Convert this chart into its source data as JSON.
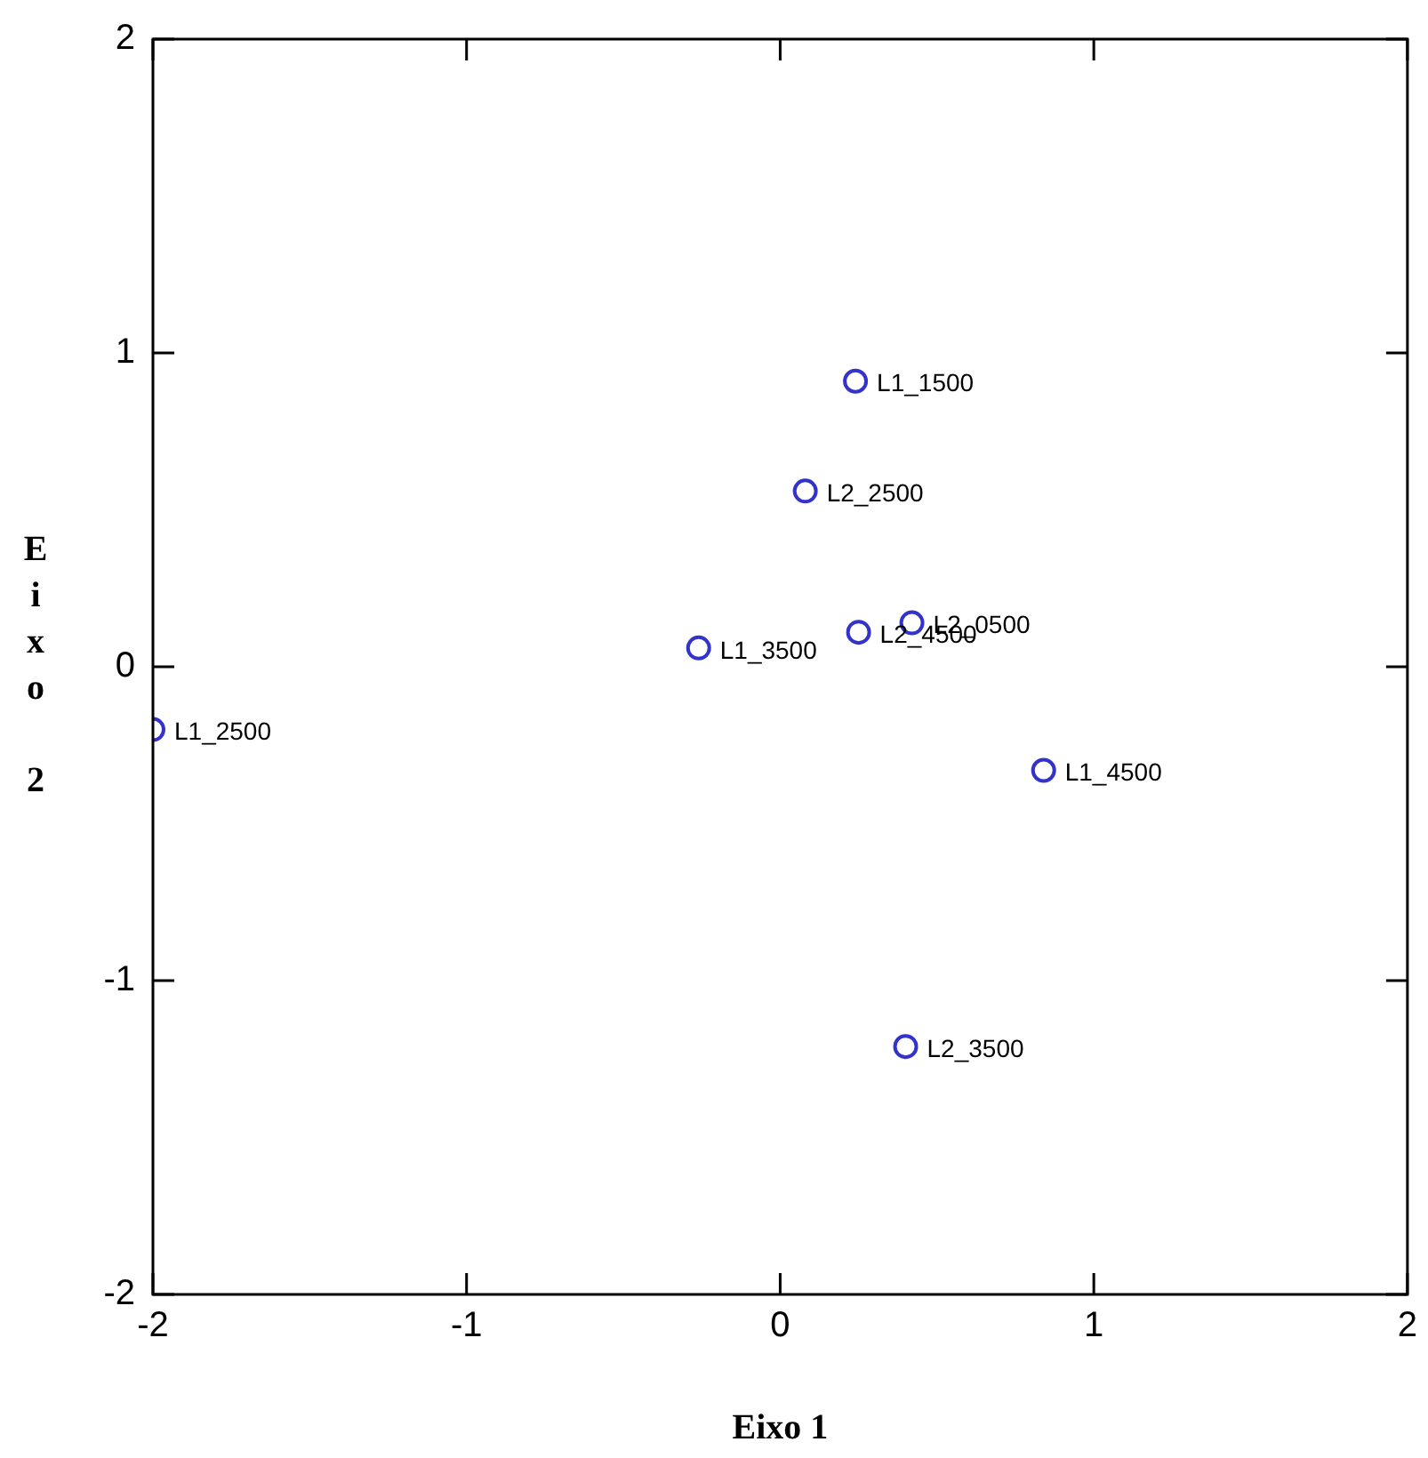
{
  "chart_data": {
    "type": "scatter",
    "xlabel": "Eixo 1",
    "ylabel": "Eixo 2",
    "marker": "circle",
    "legend": false,
    "series": [
      {
        "color": "#3333cc",
        "x": [
          0.24,
          0.08,
          -0.26,
          0.25,
          0.42,
          -2.0,
          0.84,
          0.4
        ],
        "values": [
          0.91,
          0.56,
          0.06,
          0.11,
          0.14,
          -0.2,
          -0.33,
          -1.21
        ]
      }
    ],
    "xlim": [
      -2,
      2
    ],
    "ylim": [
      -2,
      2
    ],
    "xticks": [
      -2,
      -1,
      0,
      1,
      2
    ],
    "yticks": [
      -2,
      -1,
      0,
      1,
      2
    ],
    "annotations": [
      {
        "text": "L1_1500",
        "x": 0.24,
        "y": 0.91
      },
      {
        "text": "L2_2500",
        "x": 0.08,
        "y": 0.56
      },
      {
        "text": "L1_3500",
        "x": -0.26,
        "y": 0.06
      },
      {
        "text": "L2_4500",
        "x": 0.25,
        "y": 0.11
      },
      {
        "text": "L2_0500",
        "x": 0.42,
        "y": 0.14
      },
      {
        "text": "L1_2500",
        "x": -2.0,
        "y": -0.2
      },
      {
        "text": "L1_4500",
        "x": 0.84,
        "y": -0.33
      },
      {
        "text": "L2_3500",
        "x": 0.4,
        "y": -1.21
      }
    ]
  }
}
